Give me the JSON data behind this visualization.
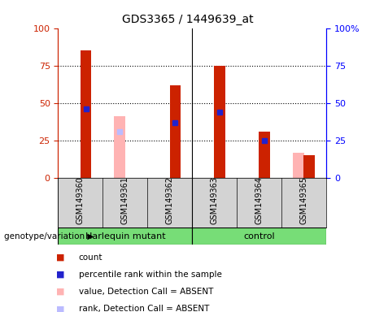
{
  "title": "GDS3365 / 1449639_at",
  "samples": [
    "GSM149360",
    "GSM149361",
    "GSM149362",
    "GSM149363",
    "GSM149364",
    "GSM149365"
  ],
  "red_bars": [
    85,
    0,
    62,
    75,
    31,
    15
  ],
  "blue_markers": [
    46,
    0,
    37,
    44,
    25,
    0
  ],
  "pink_bars": [
    0,
    41,
    0,
    0,
    0,
    17
  ],
  "lightblue_markers": [
    0,
    31,
    0,
    0,
    25,
    0
  ],
  "groups": [
    {
      "label": "Harlequin mutant",
      "indices": [
        0,
        1,
        2
      ],
      "color": "#77DD77"
    },
    {
      "label": "control",
      "indices": [
        3,
        4,
        5
      ],
      "color": "#77DD77"
    }
  ],
  "group_label_prefix": "genotype/variation",
  "ylim": [
    0,
    100
  ],
  "yticks": [
    0,
    25,
    50,
    75,
    100
  ],
  "ytick_labels_left": [
    "0",
    "25",
    "50",
    "75",
    "100"
  ],
  "ytick_labels_right": [
    "0",
    "25",
    "50",
    "75",
    "100%"
  ],
  "red_color": "#CC2200",
  "pink_color": "#FFB3B3",
  "blue_color": "#2222CC",
  "lightblue_color": "#BBBBFF",
  "bg_color": "#D3D3D3",
  "plot_bg": "#FFFFFF",
  "legend_items": [
    {
      "color": "#CC2200",
      "label": "count"
    },
    {
      "color": "#2222CC",
      "label": "percentile rank within the sample"
    },
    {
      "color": "#FFB3B3",
      "label": "value, Detection Call = ABSENT"
    },
    {
      "color": "#BBBBFF",
      "label": "rank, Detection Call = ABSENT"
    }
  ]
}
